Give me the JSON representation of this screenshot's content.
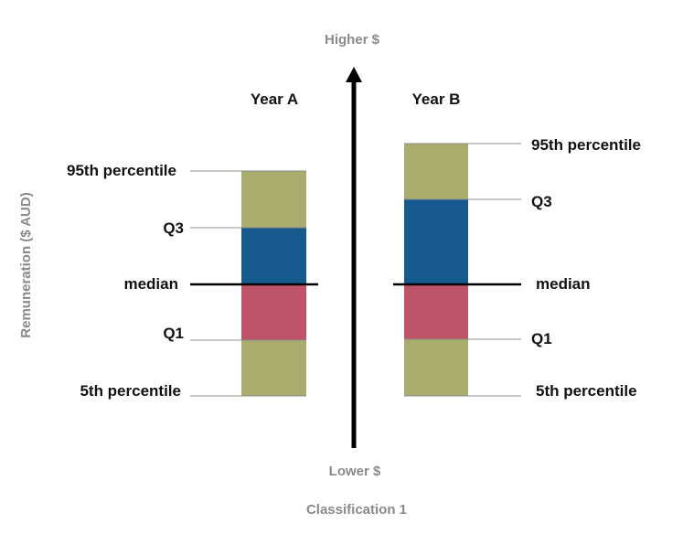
{
  "axis": {
    "top_label": "Higher $",
    "bottom_label": "Lower $",
    "y_title": "Remuneration ($ AUD)",
    "x_title": "Classification 1"
  },
  "year_a": {
    "title": "Year A",
    "labels": {
      "p95": "95th percentile",
      "q3": "Q3",
      "median": "median",
      "q1": "Q1",
      "p5": "5th percentile"
    }
  },
  "year_b": {
    "title": "Year B",
    "labels": {
      "p95": "95th percentile",
      "q3": "Q3",
      "median": "median",
      "q1": "Q1",
      "p5": "5th percentile"
    }
  },
  "colors": {
    "outer_band": "#a8ad6e",
    "upper_quartile": "#175a8e",
    "lower_quartile": "#be5468",
    "arrow": "#000000",
    "guide_line": "#8c8c8c"
  }
}
